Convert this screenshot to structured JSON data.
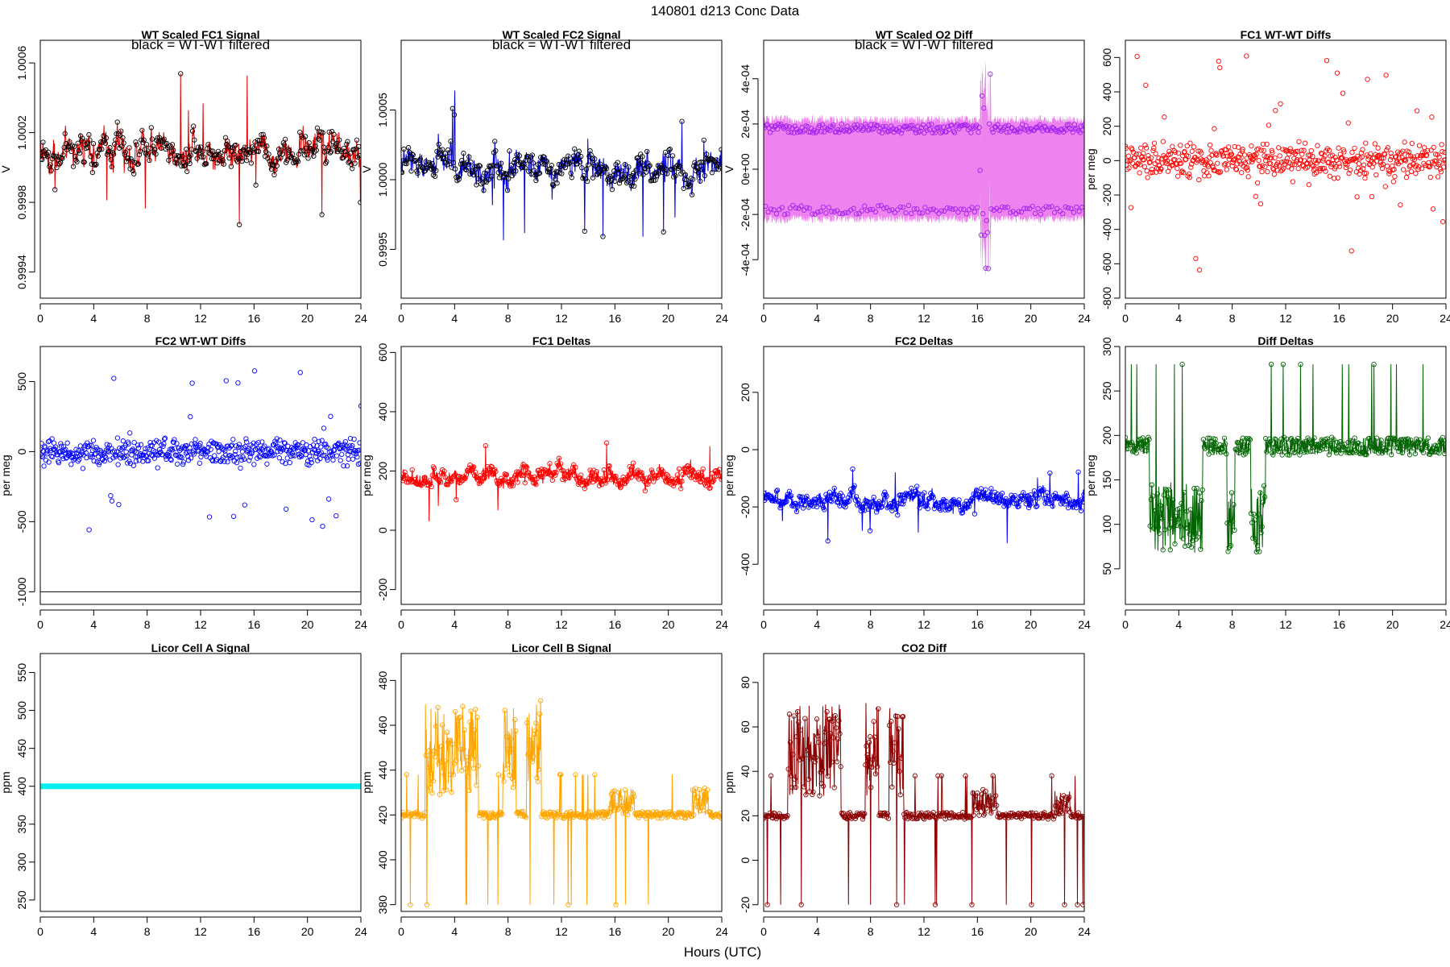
{
  "page": {
    "title": "140801    d213    Conc Data",
    "xlabel": "Hours (UTC)"
  },
  "chart_data": [
    {
      "id": "wt-fc1",
      "type": "line",
      "title": "WT Scaled FC1 Signal",
      "annotation": "black = WT-WT filtered",
      "ylabel": "V",
      "color": "#e00000",
      "marker_color": "#000000",
      "xlim": [
        0,
        24
      ],
      "xticks": [
        0,
        4,
        8,
        12,
        16,
        20,
        24
      ],
      "ylim": [
        0.99925,
        1.00073
      ],
      "yticks": [
        0.9994,
        0.9998,
        1.0002,
        1.0006
      ],
      "ytick_labels": [
        "0.9994",
        "0.9998",
        "1.0002",
        "1.0006"
      ],
      "series_hint": {
        "base": 1.0001,
        "amp": 0.00018,
        "markers": true,
        "band": false
      }
    },
    {
      "id": "wt-fc2",
      "type": "line",
      "title": "WT Scaled FC2 Signal",
      "annotation": "black = WT-WT filtered",
      "ylabel": "V",
      "color": "#0000dd",
      "marker_color": "#000000",
      "xlim": [
        0,
        24
      ],
      "xticks": [
        0,
        4,
        8,
        12,
        16,
        20,
        24
      ],
      "ylim": [
        0.99915,
        1.001
      ],
      "yticks": [
        0.9995,
        1.0,
        1.0005
      ],
      "ytick_labels": [
        "0.9995",
        "1.0000",
        "1.0005"
      ],
      "series_hint": {
        "base": 1.0001,
        "amp": 0.00022,
        "markers": true,
        "band": false
      }
    },
    {
      "id": "wt-o2diff",
      "type": "line",
      "title": "WT Scaled O2 Diff",
      "annotation": "black = WT-WT filtered",
      "ylabel": "V",
      "color": "#ee82ee",
      "marker_color": "#a020f0",
      "xlim": [
        0,
        24
      ],
      "xticks": [
        0,
        4,
        8,
        12,
        16,
        20,
        24
      ],
      "ylim": [
        -0.00057,
        0.00057
      ],
      "yticks": [
        -0.0004,
        -0.0002,
        0,
        0.0002,
        0.0004
      ],
      "ytick_labels": [
        "-4e-04",
        "-2e-04",
        "0e+00",
        "2e-04",
        "4e-04"
      ],
      "series_hint": {
        "base": 0,
        "amp": 0.0002,
        "markers": true,
        "band": true
      }
    },
    {
      "id": "fc1-wtwt",
      "type": "scatter",
      "title": "FC1 WT-WT Diffs",
      "ylabel": "per meg",
      "color": "#ff0000",
      "xlim": [
        0,
        24
      ],
      "xticks": [
        0,
        4,
        8,
        12,
        16,
        20,
        24
      ],
      "ylim": [
        -800,
        700
      ],
      "yticks": [
        -800,
        -600,
        -400,
        -200,
        0,
        200,
        400,
        600
      ],
      "ytick_labels": [
        "-800",
        "-600",
        "-400",
        "-200",
        "0",
        "200",
        "400",
        "600"
      ],
      "series_hint": {
        "base": 0,
        "amp": 90,
        "outlier": 650
      }
    },
    {
      "id": "fc2-wtwt",
      "type": "scatter",
      "title": "FC2 WT-WT Diffs",
      "ylabel": "per meg",
      "color": "#0000ff",
      "xlim": [
        0,
        24
      ],
      "xticks": [
        0,
        4,
        8,
        12,
        16,
        20,
        24
      ],
      "ylim": [
        -1090,
        750
      ],
      "yticks": [
        -1000,
        -500,
        0,
        500
      ],
      "ytick_labels": [
        "-1000",
        "-500",
        "0",
        "500"
      ],
      "hline": -1000,
      "series_hint": {
        "base": 0,
        "amp": 90,
        "outlier": 600
      }
    },
    {
      "id": "fc1-deltas",
      "type": "line",
      "title": "FC1 Deltas",
      "ylabel": "per meg",
      "color": "#ff0000",
      "xlim": [
        0,
        24
      ],
      "xticks": [
        0,
        4,
        8,
        12,
        16,
        20,
        24
      ],
      "ylim": [
        -250,
        620
      ],
      "yticks": [
        -200,
        0,
        200,
        400,
        600
      ],
      "ytick_labels": [
        "-200",
        "0",
        "200",
        "400",
        "600"
      ],
      "series_hint": {
        "base": 180,
        "amp": 60,
        "markers": true,
        "band": false
      }
    },
    {
      "id": "fc2-deltas",
      "type": "line",
      "title": "FC2 Deltas",
      "ylabel": "per meg",
      "color": "#0000ff",
      "xlim": [
        0,
        24
      ],
      "xticks": [
        0,
        4,
        8,
        12,
        16,
        20,
        24
      ],
      "ylim": [
        -540,
        360
      ],
      "yticks": [
        -400,
        -200,
        0,
        200
      ],
      "ytick_labels": [
        "-400",
        "-200",
        "0",
        "200"
      ],
      "series_hint": {
        "base": -180,
        "amp": 60,
        "markers": true,
        "band": false
      }
    },
    {
      "id": "diff-deltas",
      "type": "line",
      "title": "Diff Deltas",
      "ylabel": "per meg",
      "color": "#006400",
      "xlim": [
        0,
        24
      ],
      "xticks": [
        0,
        4,
        8,
        12,
        16,
        20,
        24
      ],
      "ylim": [
        10,
        300
      ],
      "yticks": [
        50,
        100,
        150,
        200,
        250,
        300
      ],
      "ytick_labels": [
        "50",
        "100",
        "150",
        "200",
        "250",
        "300"
      ],
      "series_hint": {
        "base": 188,
        "amp": 40,
        "markers": true,
        "band": false
      }
    },
    {
      "id": "licor-a",
      "type": "line",
      "title": "Licor Cell A Signal",
      "ylabel": "ppm",
      "color": "#00f0f0",
      "xlim": [
        0,
        24
      ],
      "xticks": [
        0,
        4,
        8,
        12,
        16,
        20,
        24
      ],
      "ylim": [
        235,
        575
      ],
      "yticks": [
        250,
        300,
        350,
        400,
        450,
        500,
        550
      ],
      "ytick_labels": [
        "250",
        "300",
        "350",
        "400",
        "450",
        "500",
        "550"
      ],
      "series_hint": {
        "base": 400,
        "amp": 0,
        "markers": true,
        "band": false,
        "thick": true
      }
    },
    {
      "id": "licor-b",
      "type": "line",
      "title": "Licor Cell B Signal",
      "ylabel": "ppm",
      "color": "#ffa500",
      "xlim": [
        0,
        24
      ],
      "xticks": [
        0,
        4,
        8,
        12,
        16,
        20,
        24
      ],
      "ylim": [
        377,
        492
      ],
      "yticks": [
        380,
        400,
        420,
        440,
        460,
        480
      ],
      "ytick_labels": [
        "380",
        "400",
        "420",
        "440",
        "460",
        "480"
      ],
      "series_hint": {
        "base": 420,
        "amp": 30,
        "markers": true,
        "band": false
      }
    },
    {
      "id": "co2-diff",
      "type": "line",
      "title": "CO2 Diff",
      "ylabel": "ppm",
      "color": "#8b0000",
      "xlim": [
        0,
        24
      ],
      "xticks": [
        0,
        4,
        8,
        12,
        16,
        20,
        24
      ],
      "ylim": [
        -23,
        93
      ],
      "yticks": [
        -20,
        0,
        20,
        40,
        60,
        80
      ],
      "ytick_labels": [
        "-20",
        "0",
        "20",
        "40",
        "60",
        "80"
      ],
      "series_hint": {
        "base": 20,
        "amp": 30,
        "markers": true,
        "band": false
      }
    }
  ]
}
